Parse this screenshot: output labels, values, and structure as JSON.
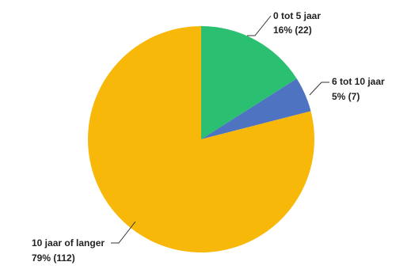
{
  "chart_data": {
    "type": "pie",
    "start_angle_deg": 0,
    "direction": "clockwise",
    "slices": [
      {
        "label": "0 tot 5 jaar",
        "value_text": "16% (22)",
        "percent": 16,
        "count": 22,
        "color": "#2bbf72"
      },
      {
        "label": "6 tot 10 jaar",
        "value_text": "5% (7)",
        "percent": 5,
        "count": 7,
        "color": "#4d73c1"
      },
      {
        "label": "10 jaar of langer",
        "value_text": "79% (112)",
        "percent": 79,
        "count": 112,
        "color": "#f8b80a"
      }
    ]
  }
}
